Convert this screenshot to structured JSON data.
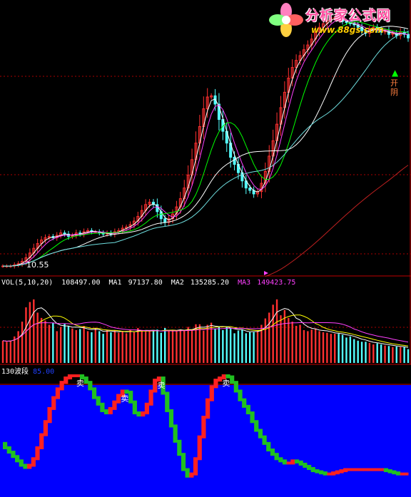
{
  "colors": {
    "background": "#000000",
    "up": "#ff3030",
    "down": "#54ffff",
    "ma1": "#ffffff",
    "ma2": "#ffff00",
    "ma3": "#ff40ff",
    "ma4": "#00ff00",
    "ma5": "#6fdfe0",
    "long_ma": "#c02020",
    "wave_bg": "#0000ff",
    "wave_up": "#ff2020",
    "wave_down": "#20c020",
    "grid": "#aa0000"
  },
  "logo": {
    "title": "分析家公式网",
    "url": "www.88gs.com"
  },
  "price_panel": {
    "low_label": "10.55",
    "note_label": "开阴",
    "note_arrow": "▲"
  },
  "volume_header": {
    "name": "VOL(5,10,20)",
    "value": "108497.00",
    "ma1_label": "MA1",
    "ma1_value": "97137.80",
    "ma2_label": "MA2",
    "ma2_value": "135285.20",
    "ma3_label": "MA3",
    "ma3_value": "149423.75"
  },
  "wave_header": {
    "name": "130波段",
    "value": "85.00"
  },
  "chart_data": [
    {
      "type": "candlestick",
      "panel": "price",
      "closes": [
        10.6,
        10.6,
        10.6,
        10.7,
        10.8,
        11.0,
        11.3,
        11.7,
        12.1,
        12.5,
        12.8,
        13.0,
        13.1,
        13.0,
        13.2,
        13.4,
        13.3,
        13.1,
        13.2,
        13.4,
        13.3,
        13.5,
        13.6,
        13.5,
        13.5,
        13.4,
        13.3,
        13.4,
        13.3,
        13.5,
        13.6,
        13.8,
        13.9,
        14.1,
        14.4,
        14.8,
        15.3,
        15.8,
        16.0,
        15.8,
        15.2,
        14.6,
        14.3,
        14.6,
        15.0,
        15.6,
        16.3,
        17.2,
        18.3,
        19.6,
        21.0,
        22.4,
        23.9,
        24.9,
        25.0,
        24.3,
        23.0,
        22.0,
        21.0,
        19.8,
        19.2,
        18.5,
        17.8,
        17.2,
        17.0,
        16.7,
        16.9,
        17.6,
        18.6,
        19.9,
        21.2,
        22.6,
        24.0,
        25.3,
        26.5,
        27.4,
        28.0,
        28.4,
        28.9,
        29.3,
        29.8,
        30.4,
        30.8,
        31.1,
        31.4,
        31.6,
        31.6,
        31.5,
        31.3,
        31.2,
        31.1,
        31.0,
        30.8,
        30.5,
        30.3,
        30.6,
        30.8,
        30.6,
        30.4,
        30.5,
        30.2,
        30.3,
        30.1,
        30.4,
        30.2,
        29.9
      ]
    },
    {
      "type": "bar",
      "panel": "volume",
      "values": [
        42,
        40,
        42,
        50,
        60,
        78,
        105,
        115,
        120,
        95,
        85,
        80,
        72,
        76,
        60,
        68,
        74,
        70,
        65,
        62,
        64,
        70,
        60,
        58,
        66,
        60,
        55,
        62,
        58,
        62,
        57,
        60,
        56,
        63,
        58,
        66,
        62,
        59,
        62,
        60,
        63,
        57,
        66,
        62,
        62,
        60,
        63,
        62,
        68,
        62,
        73,
        73,
        61,
        72,
        76,
        65,
        69,
        62,
        69,
        66,
        56,
        61,
        63,
        56,
        58,
        58,
        62,
        72,
        84,
        95,
        110,
        120,
        90,
        100,
        85,
        78,
        70,
        72,
        62,
        60,
        63,
        65,
        60,
        58,
        57,
        55,
        55,
        55,
        53,
        48,
        50,
        45,
        42,
        40,
        40,
        38,
        35,
        37,
        35,
        33,
        32,
        30,
        31,
        30,
        30,
        26
      ]
    },
    {
      "type": "line",
      "panel": "wave",
      "series_name": "130波段",
      "ylim": [
        0,
        100
      ],
      "values": [
        38,
        34,
        30,
        26,
        22,
        18,
        16,
        18,
        24,
        34,
        46,
        58,
        70,
        80,
        88,
        94,
        98,
        100,
        100,
        100,
        98,
        94,
        88,
        80,
        74,
        68,
        66,
        70,
        76,
        82,
        86,
        85,
        76,
        66,
        64,
        66,
        74,
        86,
        96,
        98,
        84,
        68,
        54,
        40,
        28,
        14,
        8,
        10,
        24,
        44,
        62,
        78,
        90,
        96,
        98,
        100,
        99,
        94,
        86,
        78,
        72,
        66,
        58,
        50,
        44,
        38,
        32,
        28,
        24,
        22,
        20,
        20,
        22,
        21,
        19,
        17,
        15,
        13,
        12,
        11,
        10,
        10,
        11,
        12,
        13,
        14,
        14,
        14,
        14,
        14,
        14,
        14,
        14,
        14,
        14,
        13,
        12,
        11,
        10,
        10,
        10
      ]
    }
  ]
}
